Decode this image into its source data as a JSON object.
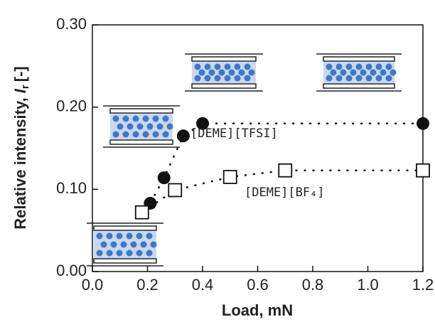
{
  "chart_data": {
    "type": "scatter",
    "x_label": "Load, mN",
    "y_label": {
      "text": "Relative intensity, ",
      "symbol": "I",
      "subscript": "r",
      "unit": "[-]"
    },
    "xlim": [
      0,
      1.2
    ],
    "xticks": [
      {
        "value": 0,
        "label": "0.0"
      },
      0.2,
      0.4,
      0.6,
      0.8,
      {
        "value": 1,
        "label": "1.0"
      },
      1.2
    ],
    "ylim": [
      0,
      0.3
    ],
    "yticks": [
      {
        "value": 0,
        "label": "0.00"
      },
      {
        "value": 0.1,
        "label": "0.10"
      },
      {
        "value": 0.2,
        "label": "0.20"
      },
      {
        "value": 0.3,
        "label": "0.30"
      }
    ],
    "series": [
      {
        "name": "[DEME][TFSI]",
        "color": "#111111",
        "marker": "circle",
        "x": [
          0.21,
          0.26,
          0.33,
          0.4,
          1.2
        ],
        "values": [
          0.083,
          0.114,
          0.165,
          0.18,
          0.18
        ]
      },
      {
        "name": "[DEME][BF₄]",
        "color": "#111111",
        "marker": "square",
        "x": [
          0.18,
          0.3,
          0.5,
          0.7,
          1.2
        ],
        "values": [
          0.072,
          0.099,
          0.115,
          0.123,
          0.123
        ]
      }
    ]
  }
}
